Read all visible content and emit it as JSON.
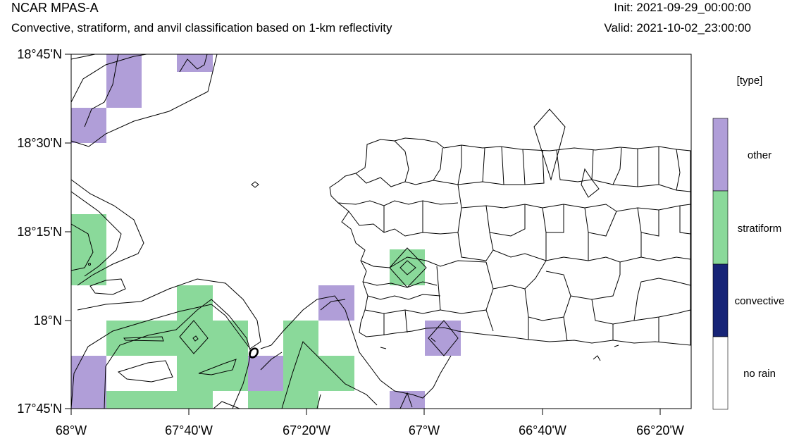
{
  "header": {
    "model": "NCAR MPAS-A",
    "description": "Convective, stratiform, and anvil classification based on 1-km reflectivity",
    "init": "Init: 2021-09-29_00:00:00",
    "valid": "Valid: 2021-10-02_23:00:00"
  },
  "axes": {
    "lat_ticks": [
      "18°45'N",
      "18°30'N",
      "18°15'N",
      "18°N",
      "17°45'N"
    ],
    "lon_ticks": [
      "68°W",
      "67°40'W",
      "67°20'W",
      "67°W",
      "66°40'W",
      "66°20'W"
    ]
  },
  "legend": {
    "title": "[type]",
    "items": [
      {
        "label": "other",
        "color": "#b09ed8"
      },
      {
        "label": "stratiform",
        "color": "#8ad99a"
      },
      {
        "label": "convective",
        "color": "#172477"
      },
      {
        "label": "no rain",
        "color": "#ffffff"
      }
    ]
  },
  "colors": {
    "other": "#b09ed8",
    "stratiform": "#8ad99a",
    "convective": "#172477",
    "coast": "#000000"
  }
}
